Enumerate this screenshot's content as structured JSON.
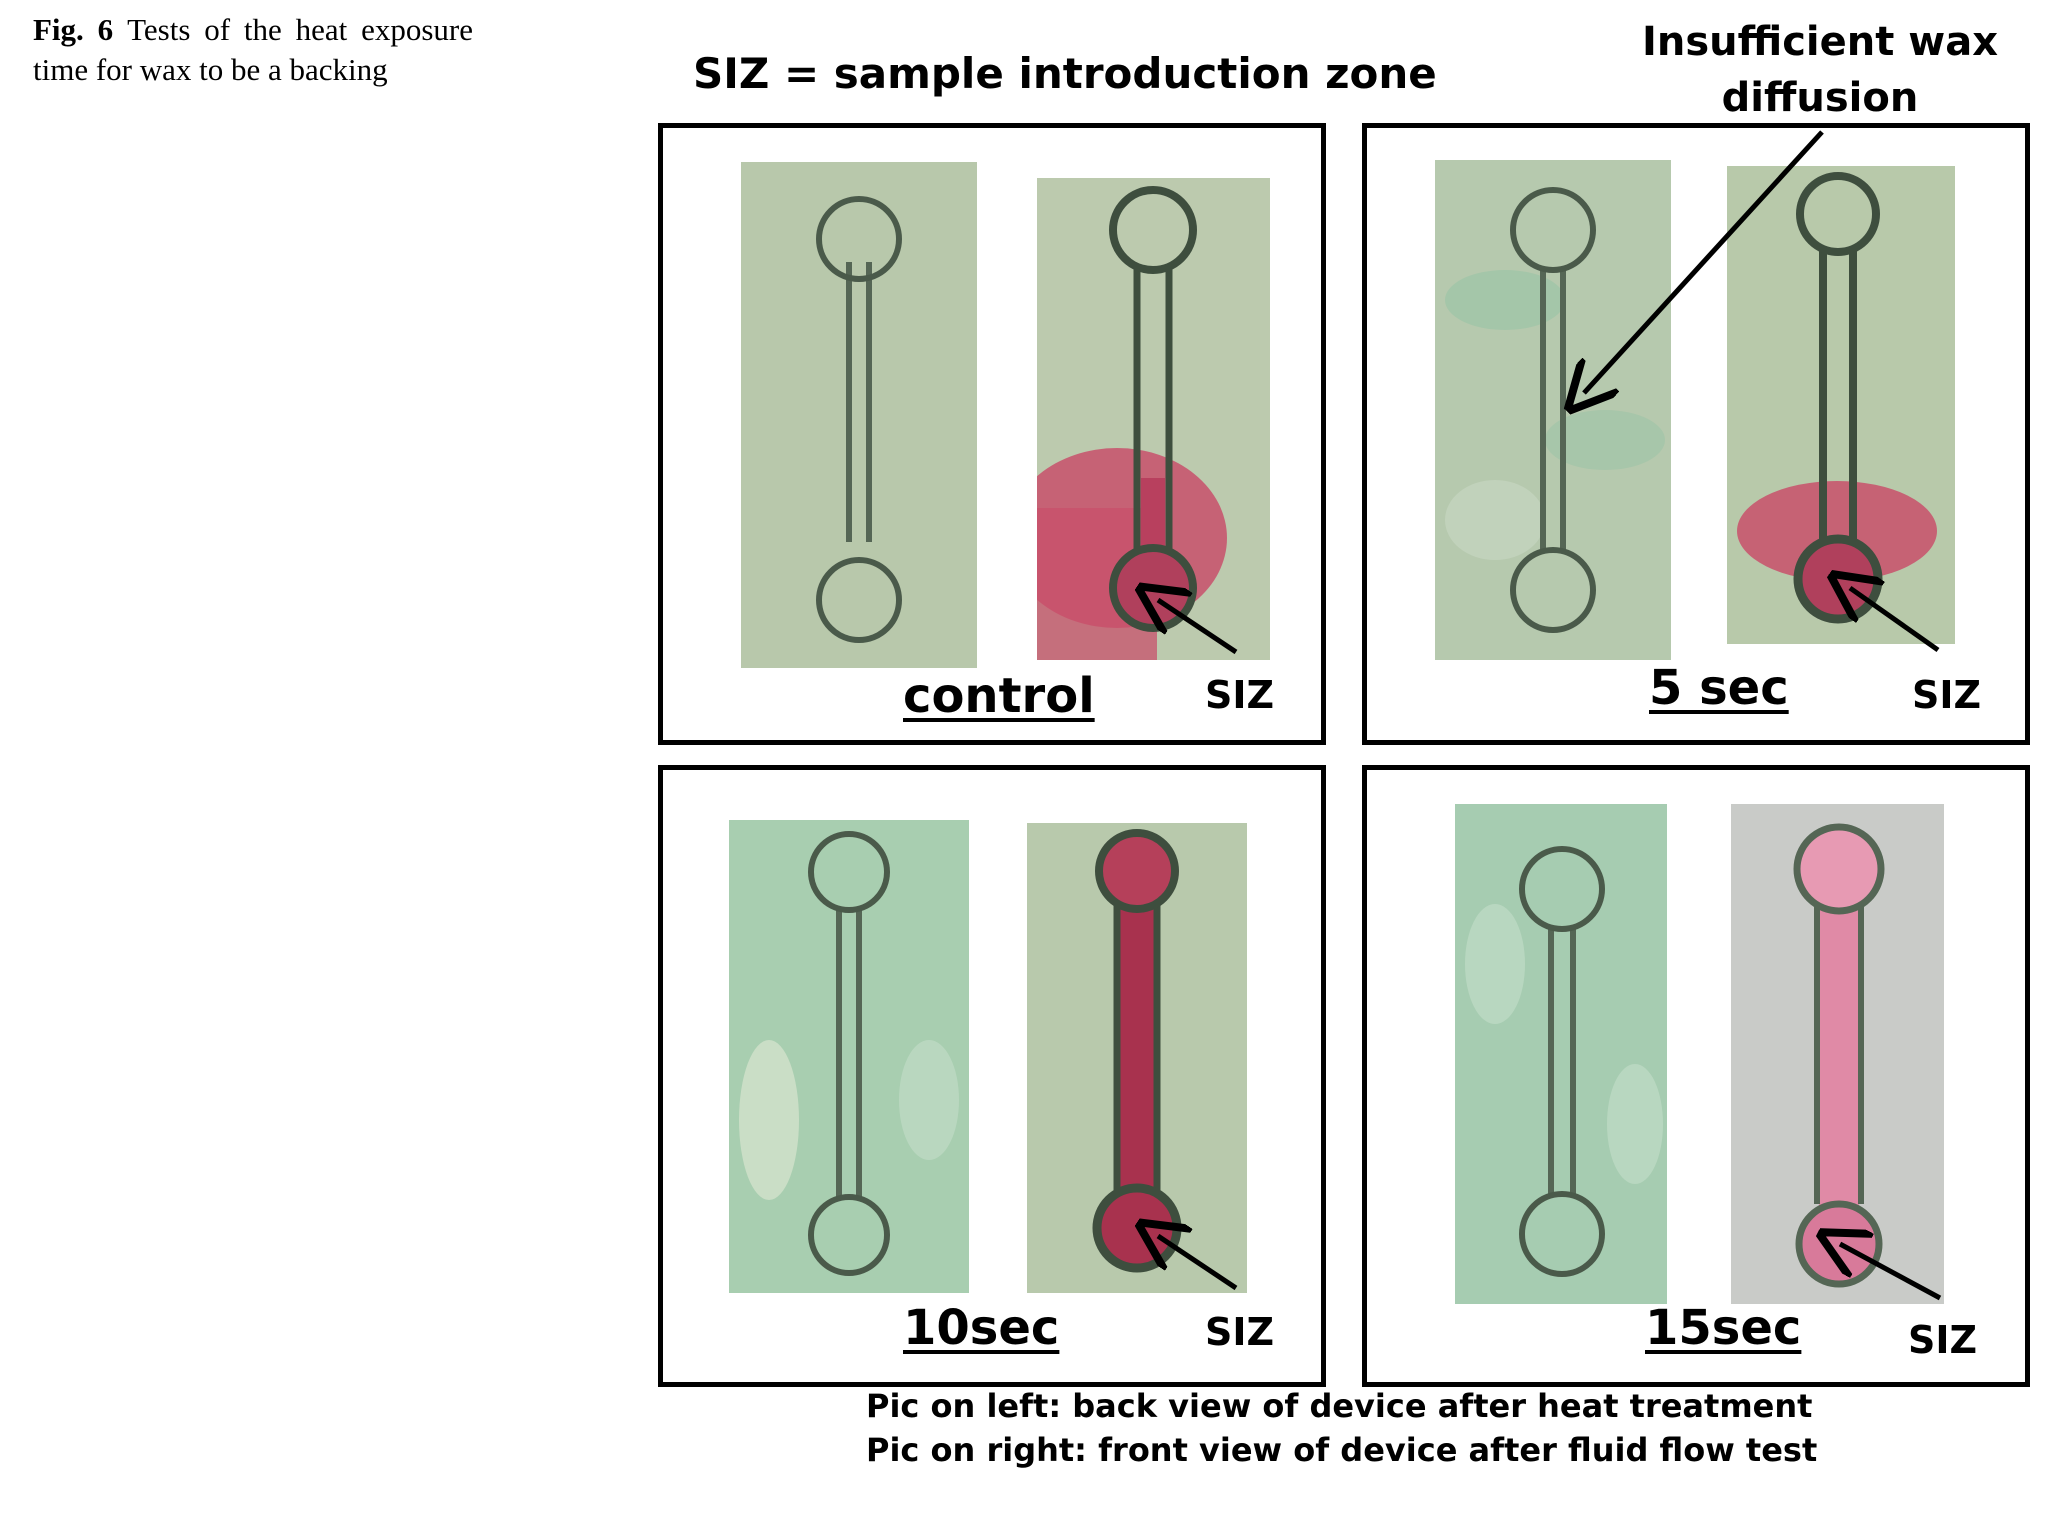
{
  "caption": {
    "figure_label": "Fig. 6",
    "text": "Tests of the heat exposure time for wax to be a backing"
  },
  "legend": {
    "siz_definition": "SIZ = sample introduction zone"
  },
  "annotation": {
    "line1": "Insufficient wax",
    "line2": "diffusion"
  },
  "panels": [
    {
      "label": "control",
      "siz": "SIZ"
    },
    {
      "label": "5 sec",
      "siz": "SIZ"
    },
    {
      "label": "10sec",
      "siz": "SIZ"
    },
    {
      "label": "15sec",
      "siz": "SIZ"
    }
  ],
  "footer": {
    "line1": "Pic on left: back view of device after heat treatment",
    "line2": "Pic on right: front view of device after fluid flow test"
  },
  "colors": {
    "paper_green": "#b9c9ad",
    "paper_green_light": "#a9cfb2",
    "wax_outline": "#4a5a4a",
    "dye_pink": "#c8506b",
    "dye_red": "#a8324e",
    "dye_light_pink": "#e08aa6",
    "grey_paper": "#c9cbc8"
  }
}
